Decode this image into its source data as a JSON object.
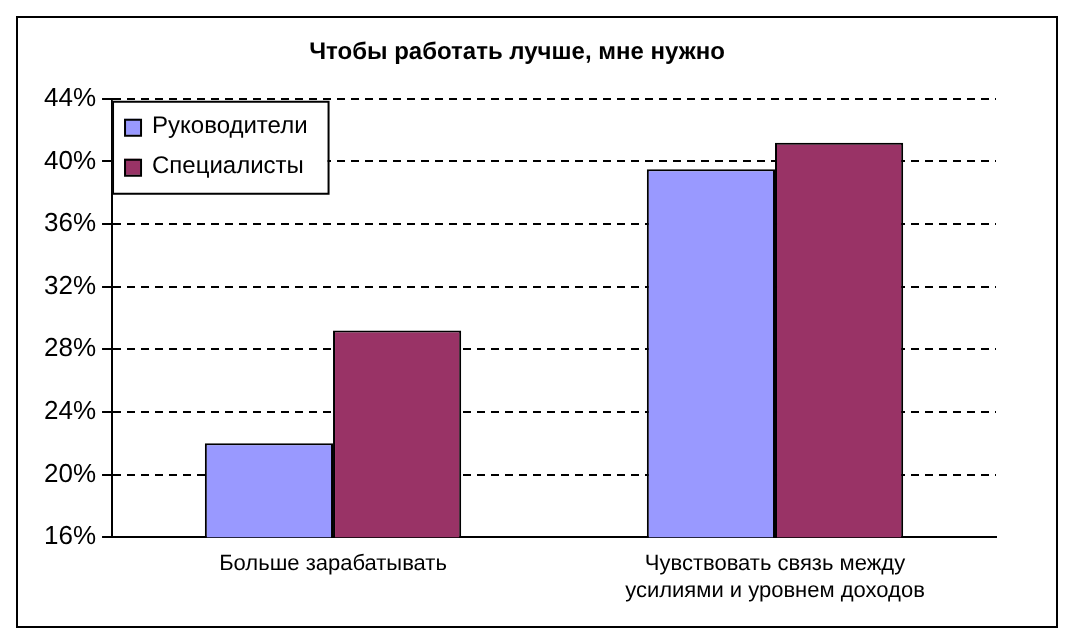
{
  "chart_data": {
    "type": "bar",
    "title": "Чтобы работать лучше, мне нужно",
    "categories": [
      "Больше зарабатывать",
      "Чувствовать связь между усилиями и уровнем доходов"
    ],
    "series": [
      {
        "name": "Руководители",
        "color": "#9999ff",
        "values": [
          22.0,
          39.5
        ]
      },
      {
        "name": "Специалисты",
        "color": "#993366",
        "values": [
          29.2,
          41.2
        ]
      }
    ],
    "ylim": [
      16,
      44
    ],
    "yticks": [
      {
        "value": 16,
        "label": "16%"
      },
      {
        "value": 20,
        "label": "20%"
      },
      {
        "value": 24,
        "label": "24%"
      },
      {
        "value": 28,
        "label": "28%"
      },
      {
        "value": 32,
        "label": "32%"
      },
      {
        "value": 36,
        "label": "36%"
      },
      {
        "value": 40,
        "label": "40%"
      },
      {
        "value": 44,
        "label": "44%"
      }
    ],
    "grid": "y",
    "legend": "top left"
  }
}
